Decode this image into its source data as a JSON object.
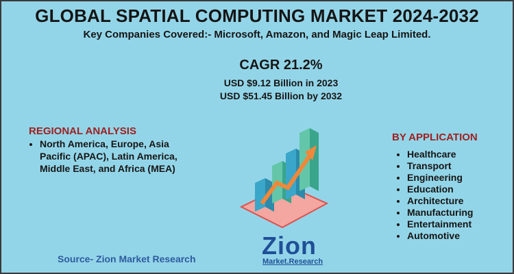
{
  "header": {
    "title": "GLOBAL SPATIAL COMPUTING MARKET 2024-2032",
    "subtitle": "Key Companies Covered:-  Microsoft, Amazon, and Magic Leap Limited."
  },
  "highlights": {
    "cagr": "CAGR 21.2%",
    "lines": [
      "USD $9.12 Billion in 2023",
      "USD $51.45 Billion  by 2032"
    ]
  },
  "regional": {
    "heading": "REGIONAL ANALYSIS",
    "items": [
      "North America, Europe, Asia Pacific (APAC), Latin America, Middle East, and Africa (MEA)"
    ]
  },
  "application": {
    "heading": "BY APPLICATION",
    "items": [
      "Healthcare",
      "Transport",
      "Engineering",
      "Education",
      "Architecture",
      "Manufacturing",
      "Entertainment",
      "Automotive"
    ]
  },
  "source": "Source- Zion Market Research",
  "logo": {
    "name": "Zion",
    "tagline": "Market.Research"
  }
}
